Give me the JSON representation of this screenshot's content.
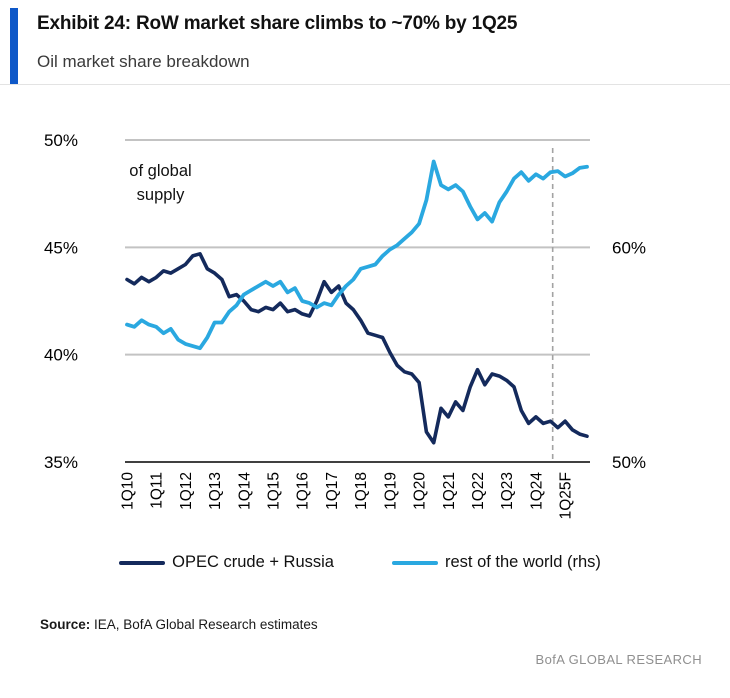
{
  "header": {
    "exhibit_title": "Exhibit 24: RoW market share climbs to ~70% by 1Q25",
    "subtitle": "Oil market share breakdown",
    "accent_color": "#0e58c8"
  },
  "chart_data": {
    "type": "line",
    "annotation": "of global supply",
    "x_start": "1Q10",
    "x_frequency": "quarterly",
    "x_tick_labels": [
      "1Q10",
      "1Q11",
      "1Q12",
      "1Q13",
      "1Q14",
      "1Q15",
      "1Q16",
      "1Q17",
      "1Q18",
      "1Q19",
      "1Q20",
      "1Q21",
      "1Q22",
      "1Q23",
      "1Q24",
      "1Q25F"
    ],
    "left_axis": {
      "min": 35,
      "max": 50,
      "ticks": [
        {
          "label": "50%",
          "value": 50
        },
        {
          "label": "45%",
          "value": 45
        },
        {
          "label": "40%",
          "value": 40
        },
        {
          "label": "35%",
          "value": 35
        }
      ]
    },
    "right_axis": {
      "min": 50,
      "max": 65,
      "ticks": [
        {
          "label": "60%",
          "value": 60
        },
        {
          "label": "50%",
          "value": 50
        }
      ]
    },
    "forecast_divider_index": 58.3,
    "grid_color": "#c3c3c3",
    "axis_color": "#404040",
    "divider_color": "#a3a3a3",
    "series": [
      {
        "name": "OPEC crude + Russia",
        "axis": "left",
        "color": "#142a5c",
        "width": 3.6,
        "values": [
          43.5,
          43.3,
          43.6,
          43.4,
          43.6,
          43.9,
          43.8,
          44.0,
          44.2,
          44.6,
          44.7,
          44.0,
          43.8,
          43.5,
          42.7,
          42.8,
          42.5,
          42.1,
          42.0,
          42.2,
          42.1,
          42.4,
          42.0,
          42.1,
          41.9,
          41.8,
          42.5,
          43.4,
          42.9,
          43.2,
          42.4,
          42.1,
          41.6,
          41.0,
          40.9,
          40.8,
          40.1,
          39.5,
          39.2,
          39.1,
          38.7,
          36.4,
          35.9,
          37.5,
          37.1,
          37.8,
          37.4,
          38.5,
          39.3,
          38.6,
          39.1,
          39.0,
          38.8,
          38.5,
          37.4,
          36.8,
          37.1,
          36.8,
          36.9,
          36.6,
          36.9,
          36.5,
          36.3,
          36.2
        ]
      },
      {
        "name": "rest of the world (rhs)",
        "axis": "right",
        "color": "#2aa8e0",
        "width": 3.8,
        "values": [
          56.4,
          56.3,
          56.6,
          56.4,
          56.3,
          56.0,
          56.2,
          55.7,
          55.5,
          55.4,
          55.3,
          55.8,
          56.5,
          56.5,
          57.0,
          57.3,
          57.8,
          58.0,
          58.2,
          58.4,
          58.2,
          58.4,
          57.9,
          58.1,
          57.5,
          57.4,
          57.2,
          57.4,
          57.3,
          57.8,
          58.2,
          58.5,
          59.0,
          59.1,
          59.2,
          59.6,
          59.9,
          60.1,
          60.4,
          60.7,
          61.1,
          62.2,
          64.0,
          62.9,
          62.7,
          62.9,
          62.6,
          61.9,
          61.3,
          61.6,
          61.2,
          62.1,
          62.6,
          63.2,
          63.5,
          63.1,
          63.4,
          63.2,
          63.5,
          63.55,
          63.3,
          63.45,
          63.7,
          63.75
        ]
      }
    ]
  },
  "legend": {
    "items": [
      {
        "label": "OPEC crude + Russia",
        "color": "#142a5c"
      },
      {
        "label": "rest of the world (rhs)",
        "color": "#2aa8e0"
      }
    ]
  },
  "footer": {
    "source_label": "Source:",
    "source_text": " IEA, BofA Global Research estimates",
    "brand": "BofA GLOBAL RESEARCH"
  }
}
